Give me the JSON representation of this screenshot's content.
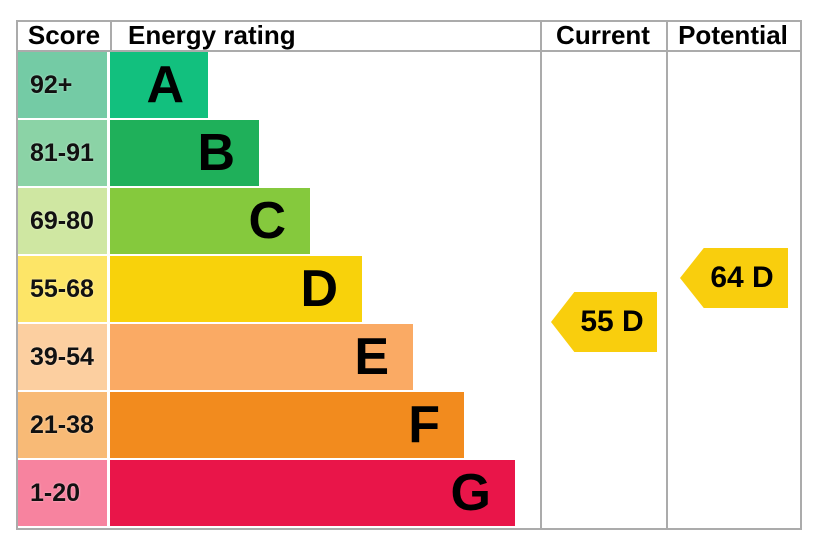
{
  "header": {
    "score": "Score",
    "energy_rating": "Energy rating",
    "current": "Current",
    "potential": "Potential"
  },
  "chart_data": {
    "type": "bar",
    "title": "Energy rating",
    "legend_position": "none",
    "grid": false,
    "bands": [
      {
        "letter": "A",
        "score_range": "92+",
        "bar_color": "#12c07e",
        "score_bg": "#74cba5"
      },
      {
        "letter": "B",
        "score_range": "81-91",
        "bar_color": "#1fb05a",
        "score_bg": "#8bd3a6"
      },
      {
        "letter": "C",
        "score_range": "69-80",
        "bar_color": "#85c93d",
        "score_bg": "#cfe7a2"
      },
      {
        "letter": "D",
        "score_range": "55-68",
        "bar_color": "#f8d20b",
        "score_bg": "#fde567"
      },
      {
        "letter": "E",
        "score_range": "39-54",
        "bar_color": "#faaa64",
        "score_bg": "#fccfa0"
      },
      {
        "letter": "F",
        "score_range": "21-38",
        "bar_color": "#f28b1e",
        "score_bg": "#f8ba76"
      },
      {
        "letter": "G",
        "score_range": "1-20",
        "bar_color": "#e91549",
        "score_bg": "#f7839f"
      }
    ],
    "current": {
      "label": "55 D",
      "value": 55,
      "band": "D"
    },
    "potential": {
      "label": "64 D",
      "value": 64,
      "band": "D"
    },
    "arrow_color": "#f9ce0d"
  }
}
